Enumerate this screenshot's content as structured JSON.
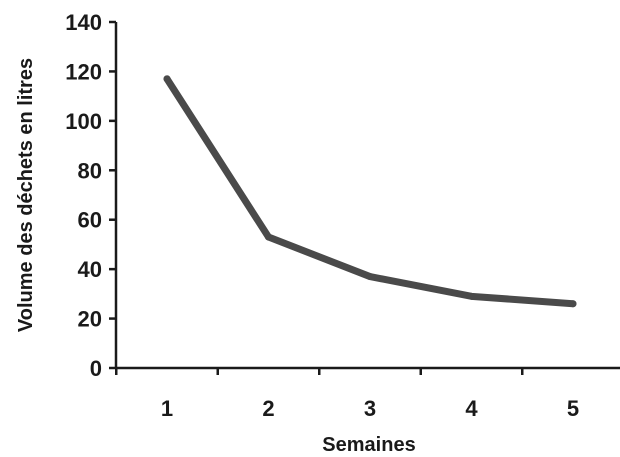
{
  "chart_data": {
    "type": "line",
    "title": "",
    "xlabel": "Semaines",
    "ylabel": "Volume des déchets en litres",
    "categories": [
      "1",
      "2",
      "3",
      "4",
      "5"
    ],
    "series": [
      {
        "values": [
          117,
          53,
          37,
          29,
          26
        ]
      }
    ],
    "ylim": [
      0,
      140
    ],
    "yticks": [
      "0",
      "20",
      "40",
      "60",
      "80",
      "100",
      "120",
      "140"
    ],
    "grid": false,
    "legend": "none",
    "colors": {
      "line": "#4a4a4a",
      "axis": "#1a1a1a"
    }
  }
}
